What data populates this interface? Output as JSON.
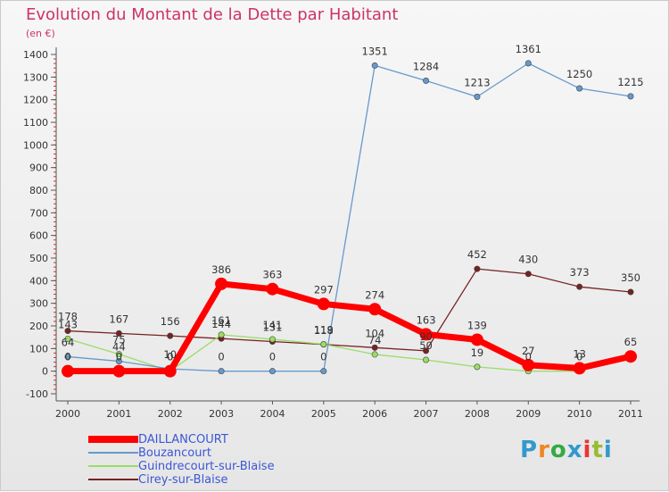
{
  "chart_data": {
    "type": "line",
    "title": "Evolution du Montant de la Dette par Habitant",
    "subtitle": "(en €)",
    "x": [
      "2000",
      "2001",
      "2002",
      "2003",
      "2004",
      "2005",
      "2006",
      "2007",
      "2008",
      "2009",
      "2010",
      "2011"
    ],
    "ylim": [
      -100,
      1400
    ],
    "yticks": [
      -100,
      0,
      100,
      200,
      300,
      400,
      500,
      600,
      700,
      800,
      900,
      1000,
      1100,
      1200,
      1300,
      1400
    ],
    "grid": false,
    "legend_position": "bottom-left",
    "series": [
      {
        "name": "DAILLANCOURT",
        "color": "#ff0000",
        "values": [
          0,
          0,
          0,
          386,
          363,
          297,
          274,
          163,
          139,
          27,
          13,
          65
        ],
        "labels": [
          "0",
          "0",
          "0",
          "386",
          "363",
          "297",
          "274",
          "163",
          "139",
          "27",
          "13",
          "65"
        ]
      },
      {
        "name": "Bouzancourt",
        "color": "#6699cc",
        "values": [
          64,
          44,
          10,
          0,
          0,
          0,
          1351,
          1284,
          1213,
          1361,
          1250,
          1215
        ],
        "labels": [
          "64",
          "44",
          "10",
          "0",
          "0",
          "0",
          "1351",
          "1284",
          "1213",
          "1361",
          "1250",
          "1215"
        ]
      },
      {
        "name": "Guindrecourt-sur-Blaise",
        "color": "#99dd66",
        "values": [
          143,
          75,
          0,
          161,
          141,
          119,
          74,
          50,
          19,
          0,
          0,
          null
        ],
        "labels": [
          "143",
          "75",
          "0",
          "161",
          "141",
          "119",
          "74",
          "50",
          "19",
          "0",
          "0",
          ""
        ]
      },
      {
        "name": "Cirey-sur-Blaise",
        "color": "#772222",
        "values": [
          178,
          167,
          156,
          144,
          131,
          118,
          104,
          90,
          452,
          430,
          373,
          350
        ],
        "labels": [
          "178",
          "167",
          "156",
          "144",
          "131",
          "118",
          "104",
          "90",
          "452",
          "430",
          "373",
          "350"
        ]
      }
    ]
  },
  "logo": {
    "letters": [
      "P",
      "r",
      "o",
      "x",
      "i",
      "t",
      "i"
    ],
    "colors": [
      "#3399cc",
      "#ee8822",
      "#33aa44",
      "#3399cc",
      "#ee3333",
      "#99bb33",
      "#3399cc"
    ]
  }
}
